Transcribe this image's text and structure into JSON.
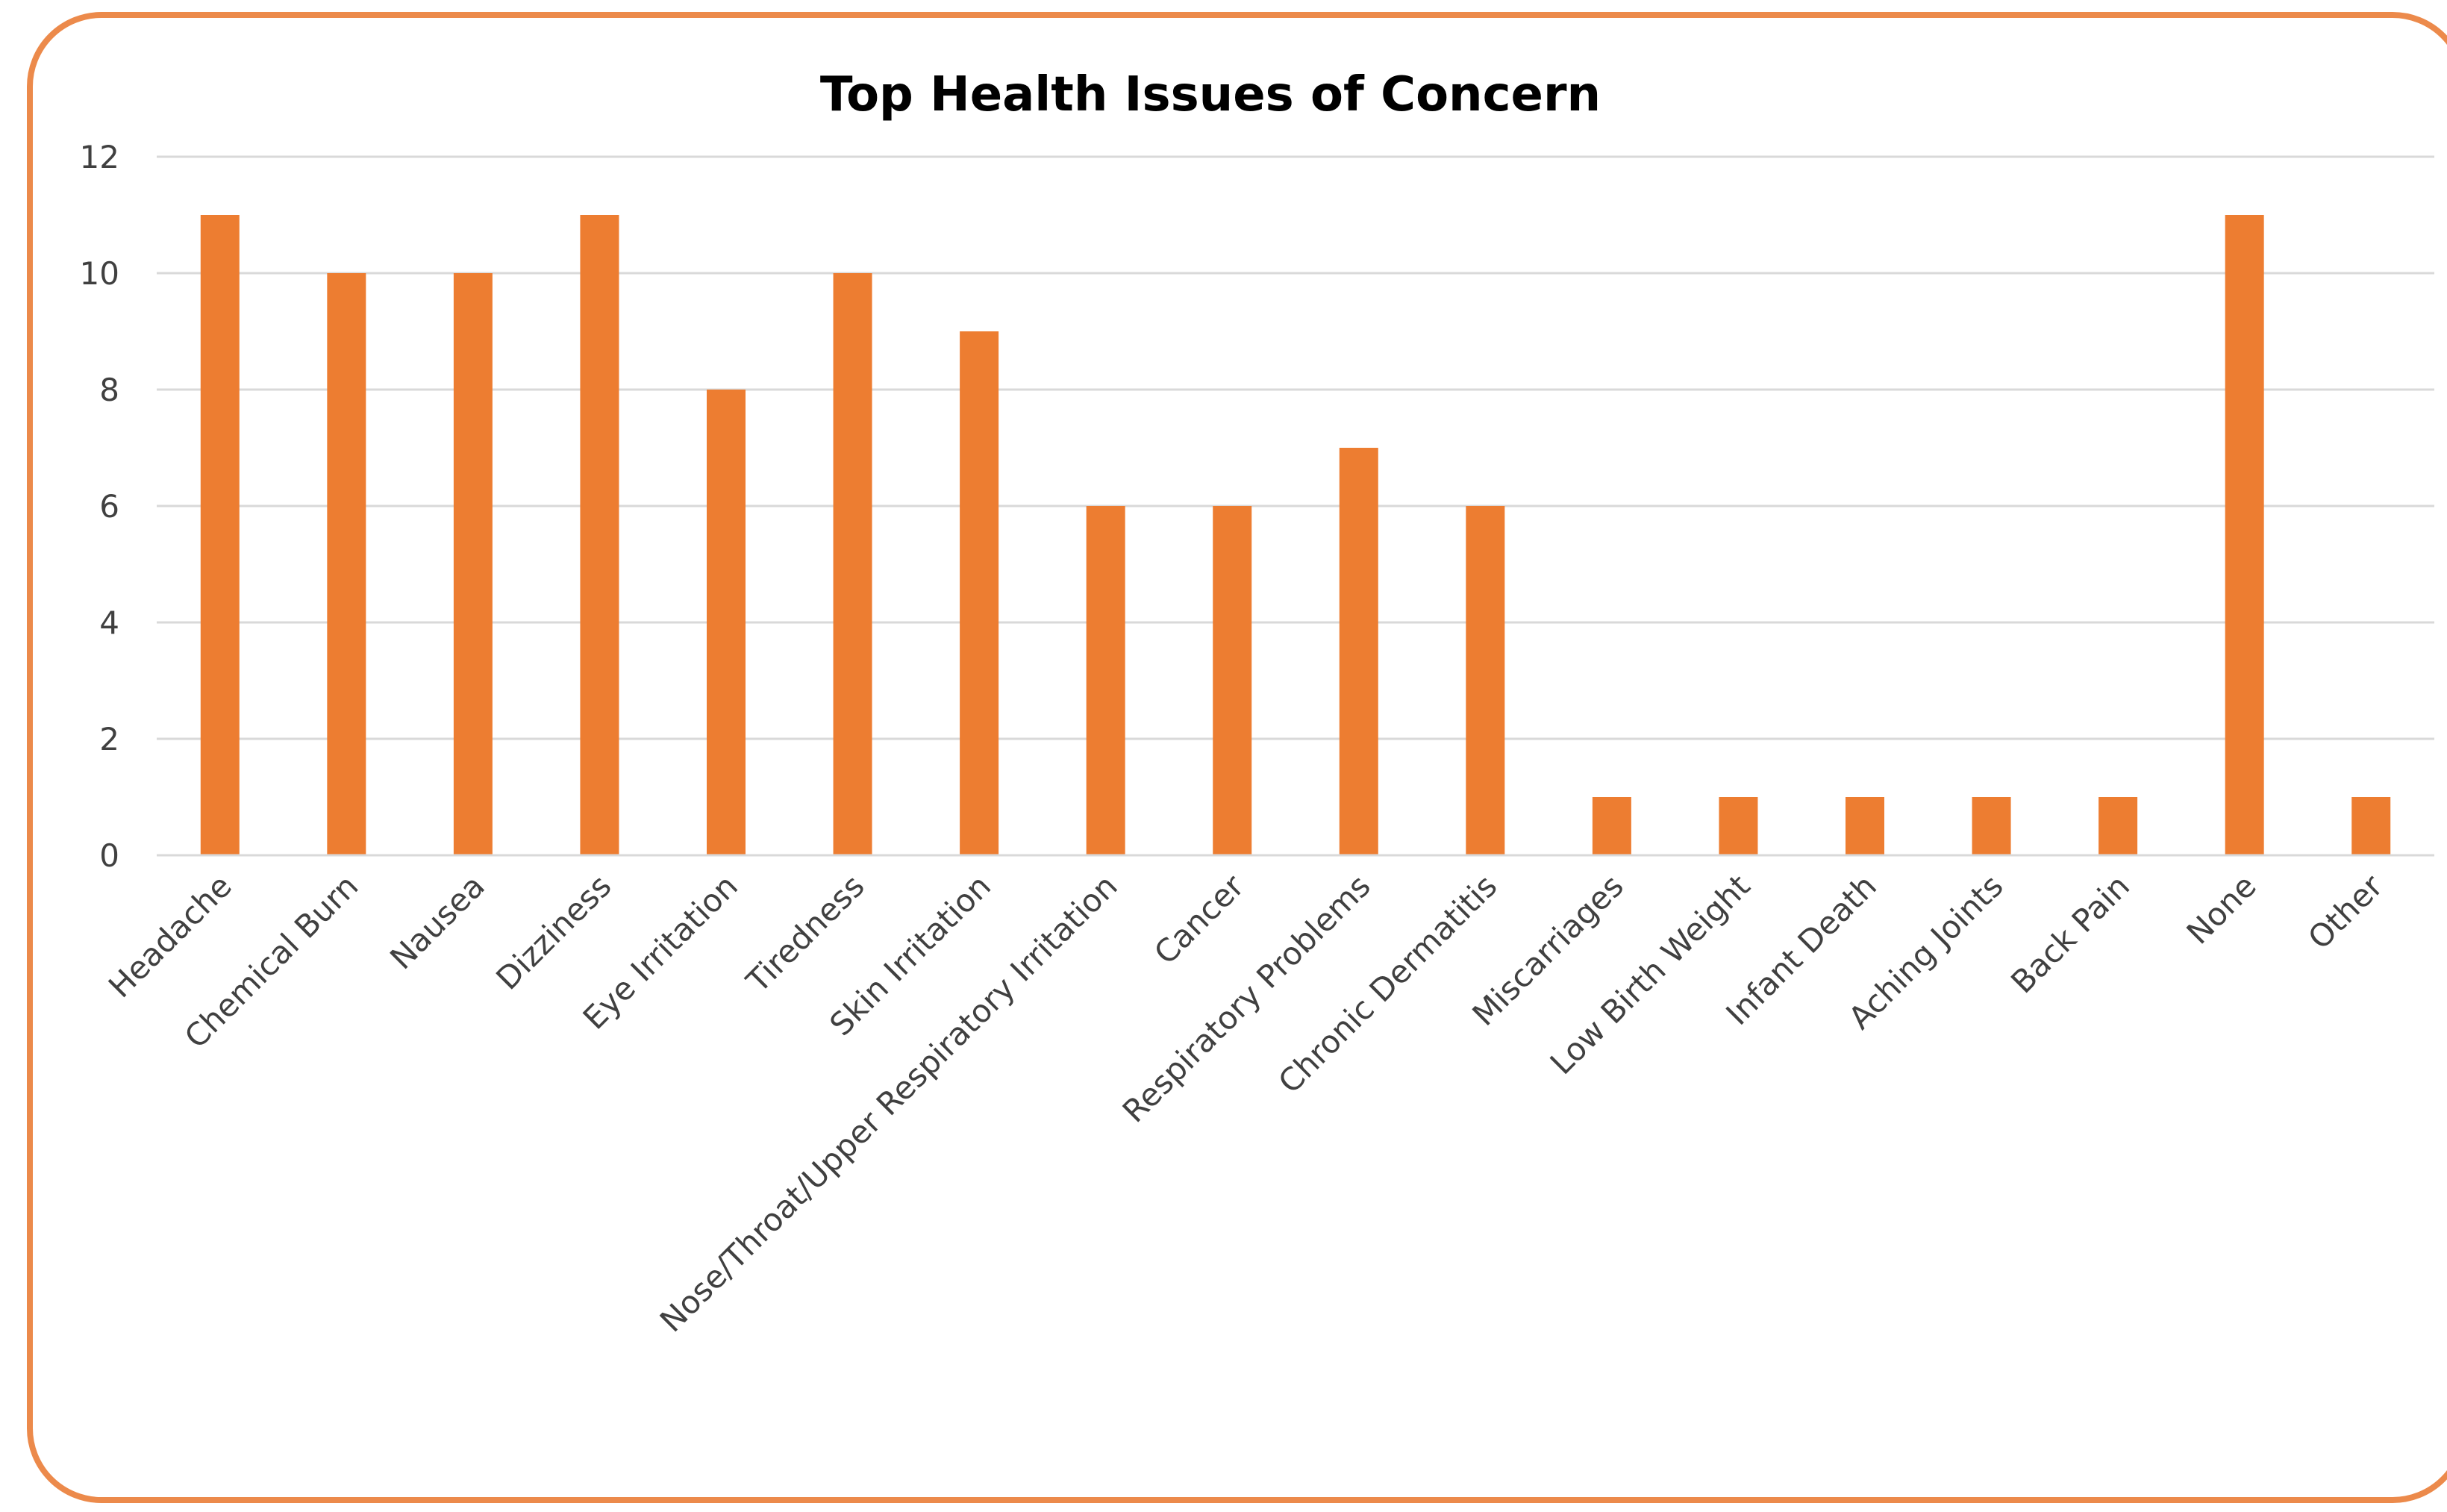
{
  "chart_data": {
    "type": "bar",
    "title": "Top Health Issues of Concern",
    "xlabel": "",
    "ylabel": "",
    "categories": [
      "Headache",
      "Chemical Burn",
      "Nausea",
      "Dizziness",
      "Eye Irritation",
      "Tiredness",
      "Skin Irritation",
      "Nose/Throat/Upper Respiratory Irritation",
      "Cancer",
      "Respiratory Problems",
      "Chronic Dermatitis",
      "Miscarriages",
      "Low Birth Weight",
      "Infant Death",
      "Aching Joints",
      "Back Pain",
      "None",
      "Other"
    ],
    "values": [
      11,
      10,
      10,
      11,
      8,
      10,
      9,
      6,
      6,
      7,
      6,
      1,
      1,
      1,
      1,
      1,
      11,
      1
    ],
    "ylim": [
      0,
      12
    ],
    "yticks": [
      0,
      2,
      4,
      6,
      8,
      10,
      12
    ],
    "grid": true,
    "legend": "none",
    "bar_color": "#ed7d31",
    "frame_color": "#ec8a4b"
  }
}
